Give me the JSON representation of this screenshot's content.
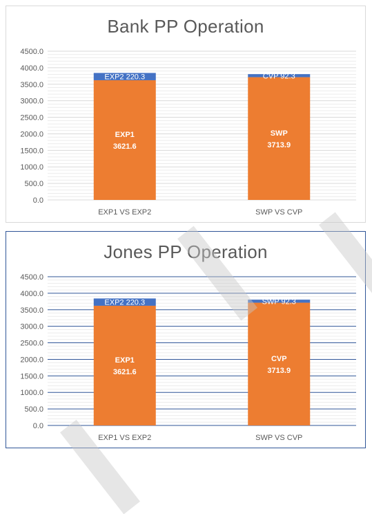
{
  "chart_data": [
    {
      "type": "bar",
      "stacked": true,
      "title": "Bank PP Operation",
      "categories": [
        "EXP1 VS EXP2",
        "SWP VS CVP"
      ],
      "series": [
        {
          "color": "#ed7d31",
          "values": [
            3621.6,
            3713.9
          ],
          "labels": [
            "EXP1\n3621.6",
            "SWP\n3713.9"
          ]
        },
        {
          "color": "#4472c4",
          "values": [
            220.3,
            92.3
          ],
          "labels": [
            "EXP2 220.3",
            "CVP 92.3"
          ]
        }
      ],
      "ylim": [
        0,
        4500
      ],
      "yticks": [
        "0.0",
        "500.0",
        "1000.0",
        "1500.0",
        "2000.0",
        "2500.0",
        "3000.0",
        "3500.0",
        "4000.0",
        "4500.0"
      ],
      "grid": "light",
      "legend": "none"
    },
    {
      "type": "bar",
      "stacked": true,
      "title": "Jones PP Operation",
      "categories": [
        "EXP1 VS EXP2",
        "SWP VS CVP"
      ],
      "series": [
        {
          "color": "#ed7d31",
          "values": [
            3621.6,
            3713.9
          ],
          "labels": [
            "EXP1\n3621.6",
            "CVP\n3713.9"
          ]
        },
        {
          "color": "#4472c4",
          "values": [
            220.3,
            92.3
          ],
          "labels": [
            "EXP2 220.3",
            "SWP 92.3"
          ]
        }
      ],
      "ylim": [
        0,
        4500
      ],
      "yticks": [
        "0.0",
        "500.0",
        "1000.0",
        "1500.0",
        "2000.0",
        "2500.0",
        "3000.0",
        "3500.0",
        "4000.0",
        "4500.0"
      ],
      "grid": "dark",
      "legend": "none"
    }
  ]
}
